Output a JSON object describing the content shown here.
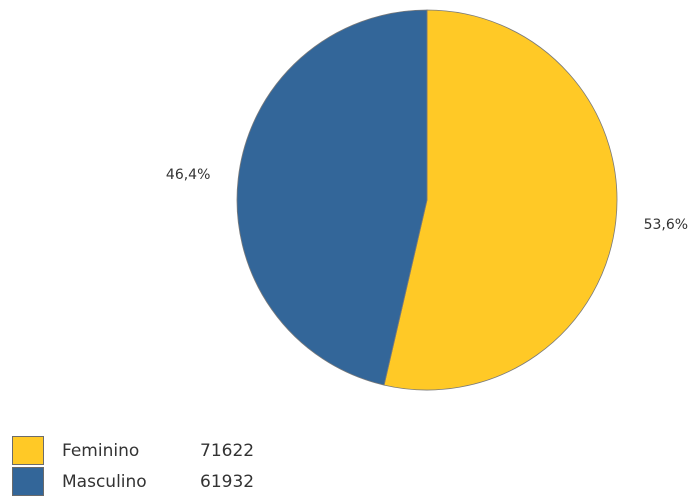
{
  "chart_data": {
    "type": "pie",
    "series": [
      {
        "name": "Feminino",
        "value": 71622,
        "percent_label": "53,6%",
        "color": "#FFC926"
      },
      {
        "name": "Masculino",
        "value": 61932,
        "percent_label": "46,4%",
        "color": "#336699"
      }
    ],
    "legend_position": "bottom-left"
  }
}
